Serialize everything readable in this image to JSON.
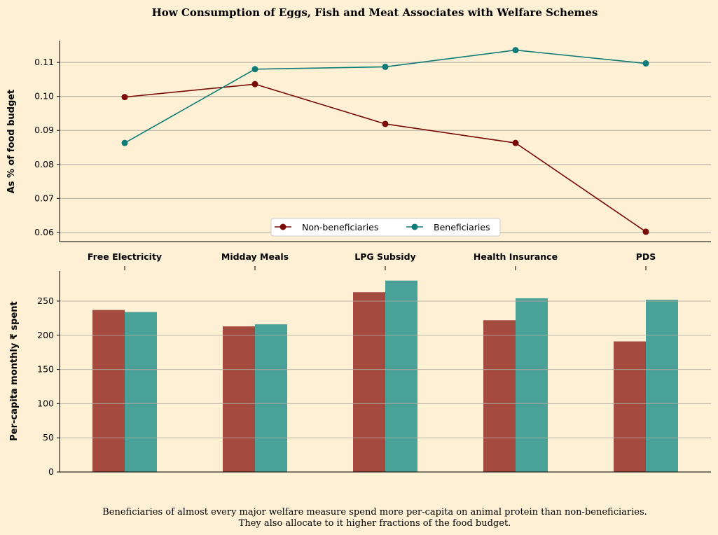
{
  "chart_data": [
    {
      "type": "line",
      "title": "How Consumption of Eggs, Fish and Meat Associates with Welfare Schemes",
      "categories": [
        "Free Electricity",
        "Midday Meals",
        "LPG Subsidy",
        "Health Insurance",
        "PDS"
      ],
      "ylabel": "As % of food budget",
      "ylim": [
        0.0573,
        0.1164
      ],
      "yticks": [
        0.06,
        0.07,
        0.08,
        0.09,
        0.1,
        0.11
      ],
      "ytick_labels": [
        "0.06",
        "0.07",
        "0.08",
        "0.09",
        "0.10",
        "0.11"
      ],
      "grid": "y",
      "legend": "bottom-center",
      "series": [
        {
          "name": "Non-beneficiaries",
          "color": "#7a0a06",
          "values": [
            0.0998,
            0.1036,
            0.0919,
            0.0863,
            0.0602
          ]
        },
        {
          "name": "Beneficiaries",
          "color": "#0f7b76",
          "values": [
            0.0863,
            0.108,
            0.1087,
            0.1136,
            0.1097
          ]
        }
      ]
    },
    {
      "type": "bar",
      "categories": [
        "Free Electricity",
        "Midday Meals",
        "LPG Subsidy",
        "Health Insurance",
        "PDS"
      ],
      "ylabel": "Per-capita monthly ₹ spent",
      "ylim": [
        0,
        294
      ],
      "yticks": [
        0,
        50,
        100,
        150,
        200,
        250
      ],
      "ytick_labels": [
        "0",
        "50",
        "100",
        "150",
        "200",
        "250"
      ],
      "grid": "y",
      "series": [
        {
          "name": "Non-beneficiaries",
          "color": "#a44a3f",
          "values": [
            237,
            213,
            263,
            222,
            191
          ]
        },
        {
          "name": "Beneficiaries",
          "color": "#4aa197",
          "values": [
            234,
            216,
            280,
            254,
            252
          ]
        }
      ]
    }
  ],
  "caption": [
    "Beneficiaries of almost every major welfare measure spend more per-capita on animal protein than non-beneficiaries.",
    "They also allocate to it higher fractions of the food budget."
  ]
}
